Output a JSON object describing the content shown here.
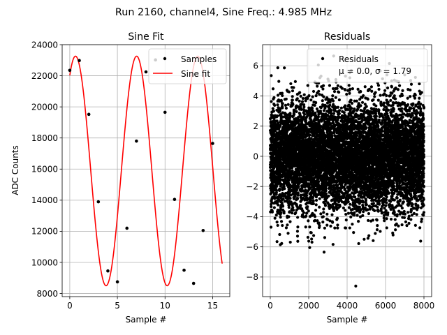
{
  "figure": {
    "suptitle": "Run 2160, channel4, Sine Freq.: 4.985 MHz"
  },
  "chart_data": [
    {
      "type": "line",
      "title": "Sine Fit",
      "xlabel": "Sample #",
      "ylabel": "ADC Counts",
      "xlim": [
        -0.8,
        16.8
      ],
      "ylim": [
        7800,
        24000
      ],
      "xticks": [
        0,
        5,
        10,
        15
      ],
      "xtick_labels": [
        "0",
        "5",
        "10",
        "15"
      ],
      "yticks": [
        8000,
        10000,
        12000,
        14000,
        16000,
        18000,
        20000,
        22000,
        24000
      ],
      "ytick_labels": [
        "8000",
        "10000",
        "12000",
        "14000",
        "16000",
        "18000",
        "20000",
        "22000",
        "24000"
      ],
      "grid": true,
      "legend_position": "top-right",
      "series": [
        {
          "name": "Samples",
          "kind": "scatter",
          "color": "#000000",
          "x": [
            0,
            1,
            2,
            3,
            4,
            5,
            6,
            7,
            8,
            9,
            10,
            11,
            12,
            13,
            14,
            15
          ],
          "y": [
            22350,
            22980,
            19520,
            13900,
            9450,
            8750,
            12200,
            17800,
            22250,
            23020,
            19650,
            14050,
            9500,
            8650,
            12050,
            17650
          ]
        },
        {
          "name": "Sine fit",
          "kind": "line",
          "color": "#ff0000",
          "x_range": [
            0,
            16
          ],
          "amplitude": 7380,
          "offset": 15880,
          "period": 6.418,
          "peak_at": 0.6
        }
      ]
    },
    {
      "type": "scatter",
      "title": "Residuals",
      "xlabel": "Sample #",
      "ylabel": "",
      "xlim": [
        -400,
        8400
      ],
      "ylim": [
        -9.3,
        7.4
      ],
      "xticks": [
        0,
        2000,
        4000,
        6000,
        8000
      ],
      "xtick_labels": [
        "0",
        "2000",
        "4000",
        "6000",
        "8000"
      ],
      "yticks": [
        -8,
        -6,
        -4,
        -2,
        0,
        2,
        4,
        6
      ],
      "ytick_labels": [
        "−8",
        "−6",
        "−4",
        "−2",
        "0",
        "2",
        "4",
        "6"
      ],
      "grid": true,
      "legend_position": "top-right",
      "series": [
        {
          "name": "Residuals",
          "stats_label": "μ = 0.0, σ = 1.79",
          "color": "#000000",
          "n_points": 8000,
          "mean": 0.0,
          "std": 1.79,
          "outliers": [
            {
              "x": 4450,
              "y": -8.6
            },
            {
              "x": 2800,
              "y": -6.35
            },
            {
              "x": 2050,
              "y": -6.05
            },
            {
              "x": 3300,
              "y": 6.65
            },
            {
              "x": 50,
              "y": 5.35
            },
            {
              "x": 2500,
              "y": 6.05
            },
            {
              "x": 6200,
              "y": 6.15
            },
            {
              "x": 7000,
              "y": 5.4
            }
          ]
        }
      ]
    }
  ]
}
